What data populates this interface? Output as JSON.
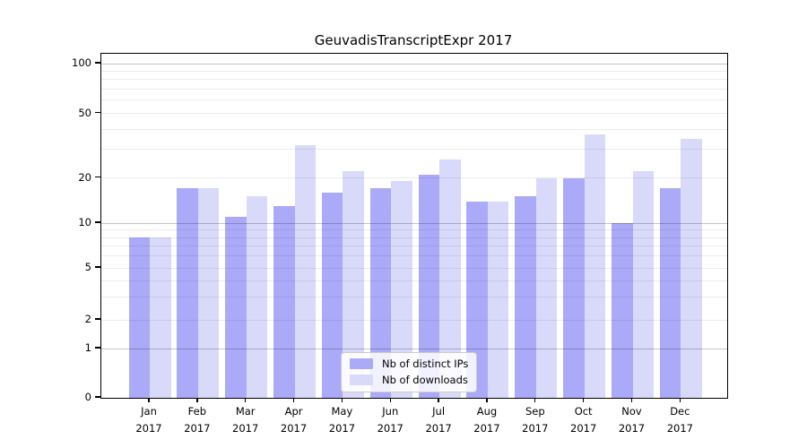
{
  "title": "GeuvadisTranscriptExpr 2017",
  "colors": {
    "distinct_ips": "#aaaaf8",
    "downloads": "#d9d9fa",
    "grid_major": "#c6c6c6",
    "grid_minor": "#ececec",
    "axis": "#000000",
    "legend_border": "#cccccc"
  },
  "y_axis": {
    "tick_labels": [
      "100",
      "50",
      "20",
      "10",
      "5",
      "2",
      "1",
      "0"
    ],
    "tick_values": [
      100,
      50,
      20,
      10,
      5,
      2,
      1,
      0
    ],
    "major_grid_values": [
      1,
      10,
      100
    ],
    "minor_grid_values": [
      2,
      3,
      4,
      5,
      6,
      7,
      8,
      9,
      20,
      30,
      40,
      50,
      60,
      70,
      80,
      90
    ]
  },
  "x_axis": {
    "months": [
      "Jan",
      "Feb",
      "Mar",
      "Apr",
      "May",
      "Jun",
      "Jul",
      "Aug",
      "Sep",
      "Oct",
      "Nov",
      "Dec"
    ],
    "year": "2017"
  },
  "legend": {
    "items": [
      {
        "label": "Nb of distinct IPs",
        "series": "distinct_ips"
      },
      {
        "label": "Nb of downloads",
        "series": "downloads"
      }
    ]
  },
  "chart_data": {
    "type": "bar",
    "title": "GeuvadisTranscriptExpr 2017",
    "categories": [
      "Jan 2017",
      "Feb 2017",
      "Mar 2017",
      "Apr 2017",
      "May 2017",
      "Jun 2017",
      "Jul 2017",
      "Aug 2017",
      "Sep 2017",
      "Oct 2017",
      "Nov 2017",
      "Dec 2017"
    ],
    "series": [
      {
        "name": "Nb of distinct IPs",
        "key": "distinct_ips",
        "values": [
          8,
          17,
          11,
          13,
          16,
          17,
          21,
          14,
          15,
          20,
          10,
          17
        ]
      },
      {
        "name": "Nb of downloads",
        "key": "downloads",
        "values": [
          8,
          17,
          15,
          32,
          22,
          19,
          26,
          14,
          20,
          37,
          22,
          35
        ]
      }
    ],
    "xlabel": "",
    "ylabel": "",
    "yscale": "log-like (ticks 0,1,2,5,10,20,50,100)",
    "ylim": [
      0,
      120
    ],
    "grid": true,
    "legend_position": "lower center"
  }
}
